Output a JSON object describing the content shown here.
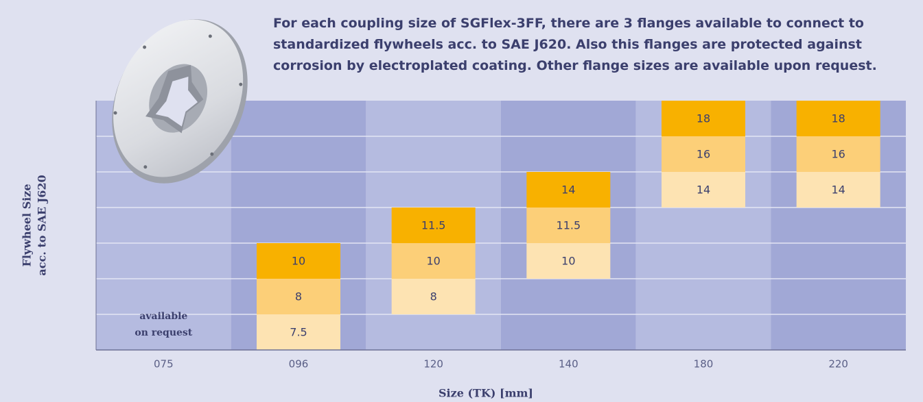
{
  "description": [
    "For each coupling size of SGFlex-3FF, there are 3 flanges available to connect to",
    "standardized flywheels acc. to SAE J620. Also this flanges are protected against",
    "corrosion by electroplated coating. Other flange sizes are available upon request."
  ],
  "y_axis_label": [
    "Flywheel Size",
    "acc. to SAE J620"
  ],
  "x_axis_label": "Size (TK) [mm]",
  "columns": [
    {
      "label": "075",
      "note": [
        "available",
        "on request"
      ]
    },
    {
      "label": "096",
      "cells": [
        "7.5",
        "8",
        "10"
      ]
    },
    {
      "label": "120",
      "cells": [
        "8",
        "10",
        "11.5"
      ]
    },
    {
      "label": "140",
      "cells": [
        "10",
        "11.5",
        "14"
      ]
    },
    {
      "label": "180",
      "cells": [
        "14",
        "16",
        "18"
      ]
    },
    {
      "label": "220",
      "cells": [
        "14",
        "16",
        "18"
      ]
    }
  ]
}
